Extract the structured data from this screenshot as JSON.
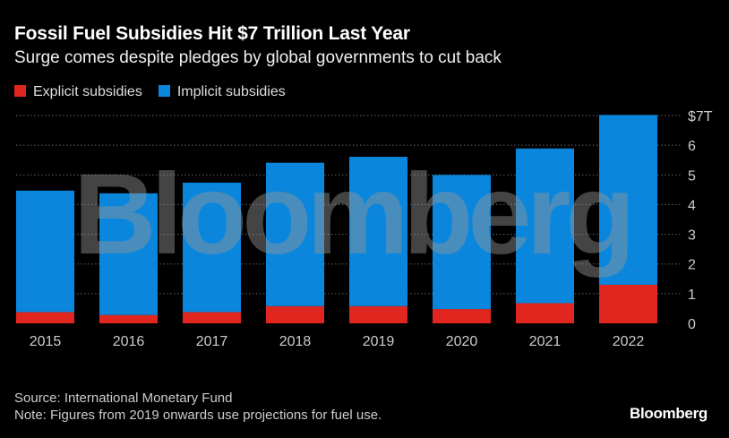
{
  "title": "Fossil Fuel Subsidies Hit $7 Trillion Last Year",
  "subtitle": "Surge comes despite pledges by global governments to cut back",
  "source": "Source: International Monetary Fund",
  "note": "Note: Figures from 2019 onwards use projections for fuel use.",
  "brand": "Bloomberg",
  "watermark": "Bloomberg",
  "chart_data": {
    "type": "bar",
    "stacked": true,
    "categories": [
      "2015",
      "2016",
      "2017",
      "2018",
      "2019",
      "2020",
      "2021",
      "2022"
    ],
    "series": [
      {
        "name": "Explicit subsidies",
        "color": "#e0261e",
        "values": [
          0.38,
          0.28,
          0.38,
          0.58,
          0.58,
          0.48,
          0.68,
          1.3
        ]
      },
      {
        "name": "Implicit subsidies",
        "color": "#0a86dc",
        "values": [
          4.09,
          4.1,
          4.36,
          4.83,
          5.03,
          4.52,
          5.21,
          5.72
        ]
      }
    ],
    "ylim": [
      0,
      7
    ],
    "yticks": [
      "0",
      "1",
      "2",
      "3",
      "4",
      "5",
      "6",
      "$7T"
    ],
    "grid": true,
    "legend": "top-left",
    "yaxis_position": "right"
  }
}
